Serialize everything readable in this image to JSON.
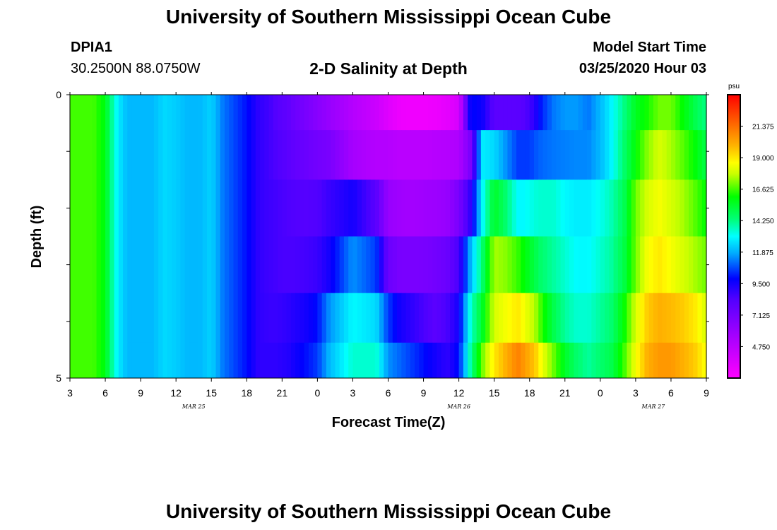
{
  "header": {
    "title_top": "University of Southern Mississippi Ocean Cube",
    "title_bottom": "University of Southern Mississippi Ocean Cube",
    "station_id": "DPIA1",
    "station_coords": "30.2500N 88.0750W",
    "plot_title": "2-D Salinity at Depth",
    "model_start_label": "Model Start Time",
    "model_start_value": "03/25/2020 Hour 03"
  },
  "chart_data": {
    "type": "heatmap",
    "title": "2-D Salinity at Depth",
    "xlabel": "Forecast Time(Z)",
    "ylabel": "Depth (ft)",
    "x_tick_labels": [
      "3",
      "6",
      "9",
      "12",
      "15",
      "18",
      "21",
      "0",
      "3",
      "6",
      "9",
      "12",
      "15",
      "18",
      "21",
      "0",
      "3",
      "6",
      "9"
    ],
    "day_labels": [
      {
        "label": "MAR 25",
        "at_hours_from_start": 10.5
      },
      {
        "label": "MAR 26",
        "at_hours_from_start": 33
      },
      {
        "label": "MAR 27",
        "at_hours_from_start": 49.5
      }
    ],
    "x_range_hours_from_start": [
      0,
      54
    ],
    "y_tick_labels": [
      "0",
      "5"
    ],
    "y_range_ft": [
      0,
      5
    ],
    "colorbar": {
      "unit": "psu",
      "min": 2.375,
      "max": 23.75,
      "labels": [
        "21.375",
        "19.000",
        "16.625",
        "14.250",
        "11.875",
        "9.500",
        "7.125",
        "4.750"
      ]
    },
    "depth_layers_ft": [
      0.25,
      1.0,
      2.0,
      3.0,
      4.0,
      4.75
    ],
    "time_keys_hours_from_start": [
      0,
      2,
      3,
      3.5,
      4,
      4.5,
      5,
      6,
      7,
      8,
      9,
      10,
      11,
      12,
      13,
      14,
      15,
      15.5,
      16,
      16.5,
      17,
      17.5,
      18,
      18.5,
      19,
      20,
      21,
      22,
      24,
      26,
      27,
      28,
      29,
      30,
      31,
      32,
      33,
      34,
      35,
      36,
      37,
      38,
      38.5,
      39,
      39.5,
      40,
      41,
      42,
      43,
      44,
      45,
      46,
      47,
      48,
      49,
      50,
      51,
      52,
      53,
      54
    ],
    "salinity_psu": [
      [
        16.6,
        16.6,
        15.8,
        14.2,
        13.0,
        12.3,
        12.0,
        12.0,
        12.0,
        12.5,
        12.3,
        12.0,
        12.0,
        12.4,
        11.2,
        10.6,
        10.0,
        9.5,
        9.0,
        8.8,
        8.6,
        8.2,
        8.0,
        7.8,
        7.5,
        7.0,
        6.5,
        6.0,
        5.0,
        4.2,
        3.5,
        3.0,
        2.9,
        2.9,
        3.0,
        3.3,
        3.8,
        10.0,
        9.6,
        8.0,
        8.0,
        8.0,
        8.2,
        8.6,
        9.2,
        10.2,
        11.2,
        11.6,
        11.6,
        11.2,
        12.0,
        13.0,
        14.2,
        15.6,
        16.2,
        17.0,
        17.0,
        16.0,
        15.0,
        14.2
      ],
      [
        16.6,
        16.6,
        15.8,
        14.2,
        13.0,
        12.3,
        12.0,
        12.0,
        12.0,
        12.5,
        12.3,
        12.0,
        12.0,
        12.4,
        11.2,
        10.6,
        10.0,
        9.5,
        9.0,
        8.8,
        8.6,
        8.4,
        8.2,
        8.0,
        7.8,
        7.5,
        7.2,
        7.0,
        5.5,
        5.0,
        5.0,
        4.8,
        4.8,
        4.8,
        4.9,
        5.0,
        5.2,
        7.0,
        12.8,
        12.5,
        11.5,
        10.5,
        10.5,
        10.5,
        10.8,
        11.0,
        11.2,
        11.3,
        11.4,
        11.4,
        12.0,
        13.0,
        14.5,
        16.0,
        17.2,
        18.0,
        17.5,
        16.8,
        16.0,
        15.0
      ],
      [
        16.6,
        16.6,
        15.8,
        14.2,
        13.0,
        12.3,
        12.0,
        12.0,
        12.0,
        12.5,
        12.3,
        12.0,
        12.0,
        12.4,
        11.2,
        10.6,
        10.0,
        9.5,
        9.0,
        8.8,
        8.7,
        8.6,
        8.5,
        8.4,
        8.3,
        8.2,
        8.3,
        8.8,
        9.5,
        8.0,
        6.0,
        5.7,
        5.6,
        5.7,
        5.8,
        6.0,
        7.0,
        9.0,
        13.0,
        15.5,
        14.5,
        13.0,
        13.0,
        13.2,
        13.4,
        13.5,
        13.5,
        13.0,
        12.8,
        12.8,
        13.2,
        13.8,
        14.8,
        17.0,
        18.0,
        18.5,
        18.0,
        17.5,
        16.8,
        16.0
      ],
      [
        16.6,
        16.6,
        15.8,
        14.2,
        13.0,
        12.3,
        12.0,
        12.0,
        12.0,
        12.5,
        12.3,
        12.0,
        12.0,
        12.4,
        11.2,
        10.6,
        10.0,
        9.5,
        9.0,
        8.8,
        8.7,
        8.6,
        8.5,
        8.5,
        8.5,
        8.6,
        8.8,
        9.5,
        11.5,
        10.5,
        7.5,
        7.0,
        7.0,
        7.0,
        7.2,
        7.5,
        8.5,
        12.0,
        14.5,
        17.5,
        17.2,
        16.5,
        16.0,
        15.5,
        15.0,
        14.5,
        14.0,
        13.5,
        13.0,
        13.0,
        13.5,
        14.0,
        15.0,
        17.0,
        18.5,
        19.0,
        18.5,
        18.0,
        17.5,
        17.0
      ],
      [
        16.6,
        16.6,
        15.8,
        14.2,
        13.0,
        12.3,
        12.0,
        12.0,
        12.0,
        12.5,
        12.3,
        12.0,
        12.0,
        12.4,
        11.2,
        10.6,
        10.0,
        9.5,
        9.0,
        8.9,
        8.8,
        8.8,
        8.9,
        9.0,
        9.2,
        9.5,
        10.0,
        11.5,
        13.0,
        12.5,
        10.5,
        9.5,
        9.0,
        8.5,
        8.0,
        8.5,
        9.5,
        13.5,
        15.5,
        18.0,
        18.5,
        19.0,
        18.5,
        18.0,
        17.5,
        16.5,
        15.0,
        14.0,
        13.5,
        13.5,
        14.0,
        14.5,
        16.0,
        18.0,
        19.5,
        20.0,
        19.8,
        19.5,
        19.0,
        18.0
      ],
      [
        16.6,
        16.6,
        15.8,
        14.2,
        13.0,
        12.3,
        12.0,
        12.0,
        12.0,
        12.5,
        12.3,
        12.0,
        12.0,
        12.4,
        11.2,
        10.6,
        10.0,
        9.5,
        9.0,
        9.0,
        9.0,
        9.0,
        9.1,
        9.2,
        9.5,
        10.0,
        10.5,
        12.0,
        13.5,
        13.5,
        11.5,
        11.0,
        10.5,
        10.0,
        9.5,
        9.0,
        10.0,
        14.0,
        17.0,
        19.0,
        20.0,
        21.0,
        20.5,
        20.0,
        19.5,
        18.5,
        17.0,
        15.5,
        14.5,
        14.0,
        14.5,
        15.0,
        16.5,
        18.5,
        20.0,
        20.5,
        20.5,
        20.0,
        19.5,
        18.5
      ]
    ]
  }
}
